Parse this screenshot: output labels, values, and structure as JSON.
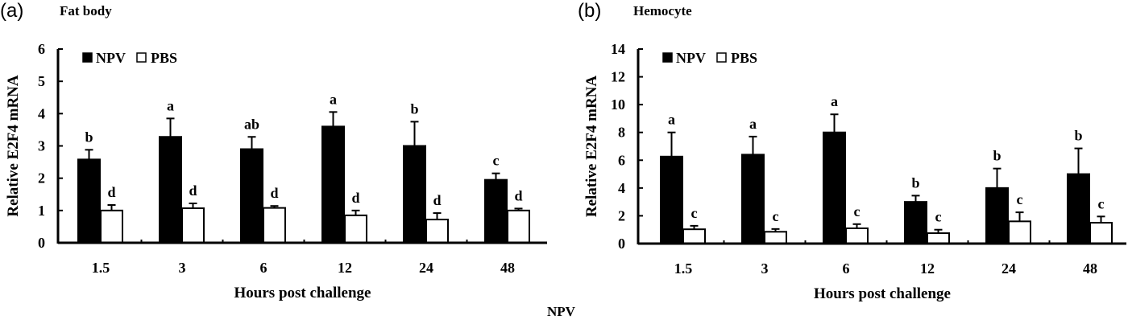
{
  "figure": {
    "footer_label": "NPV"
  },
  "chart_data": [
    {
      "panel": "(a)",
      "title": "Fat body",
      "type": "bar",
      "xlabel": "Hours post challenge",
      "ylabel": "Relative E2F4 mRNA",
      "categories": [
        "1.5",
        "3",
        "6",
        "12",
        "24",
        "48"
      ],
      "ylim": [
        0,
        6
      ],
      "yticks": [
        0,
        1,
        2,
        3,
        4,
        5,
        6
      ],
      "grid": false,
      "legend": {
        "position": "top-left",
        "entries": [
          "NPV",
          "PBS"
        ]
      },
      "series": [
        {
          "name": "NPV",
          "color": "#000000",
          "values": [
            2.58,
            3.28,
            2.9,
            3.6,
            3.0,
            1.95
          ],
          "error": [
            0.3,
            0.57,
            0.38,
            0.45,
            0.75,
            0.2
          ],
          "letters": [
            "b",
            "a",
            "ab",
            "a",
            "b",
            "c"
          ]
        },
        {
          "name": "PBS",
          "color": "#ffffff",
          "values": [
            1.0,
            1.07,
            1.08,
            0.85,
            0.72,
            1.0
          ],
          "error": [
            0.17,
            0.15,
            0.06,
            0.15,
            0.2,
            0.06
          ],
          "letters": [
            "d",
            "d",
            "d",
            "d",
            "d",
            "d"
          ]
        }
      ]
    },
    {
      "panel": "(b)",
      "title": "Hemocyte",
      "type": "bar",
      "xlabel": "Hours post challenge",
      "ylabel": "Relative E2F4 mRNA",
      "categories": [
        "1.5",
        "3",
        "6",
        "12",
        "24",
        "48"
      ],
      "ylim": [
        0,
        14
      ],
      "yticks": [
        0,
        2,
        4,
        6,
        8,
        10,
        12,
        14
      ],
      "grid": false,
      "legend": {
        "position": "top-left",
        "entries": [
          "NPV",
          "PBS"
        ]
      },
      "series": [
        {
          "name": "NPV",
          "color": "#000000",
          "values": [
            6.26,
            6.4,
            8.0,
            3.0,
            4.0,
            5.0
          ],
          "error": [
            1.74,
            1.3,
            1.3,
            0.45,
            1.4,
            1.85
          ],
          "letters": [
            "a",
            "a",
            "a",
            "b",
            "b",
            "b"
          ]
        },
        {
          "name": "PBS",
          "color": "#ffffff",
          "values": [
            1.03,
            0.85,
            1.1,
            0.75,
            1.6,
            1.5
          ],
          "error": [
            0.25,
            0.2,
            0.3,
            0.25,
            0.65,
            0.45
          ],
          "letters": [
            "c",
            "c",
            "c",
            "c",
            "c",
            "c"
          ]
        }
      ]
    }
  ]
}
